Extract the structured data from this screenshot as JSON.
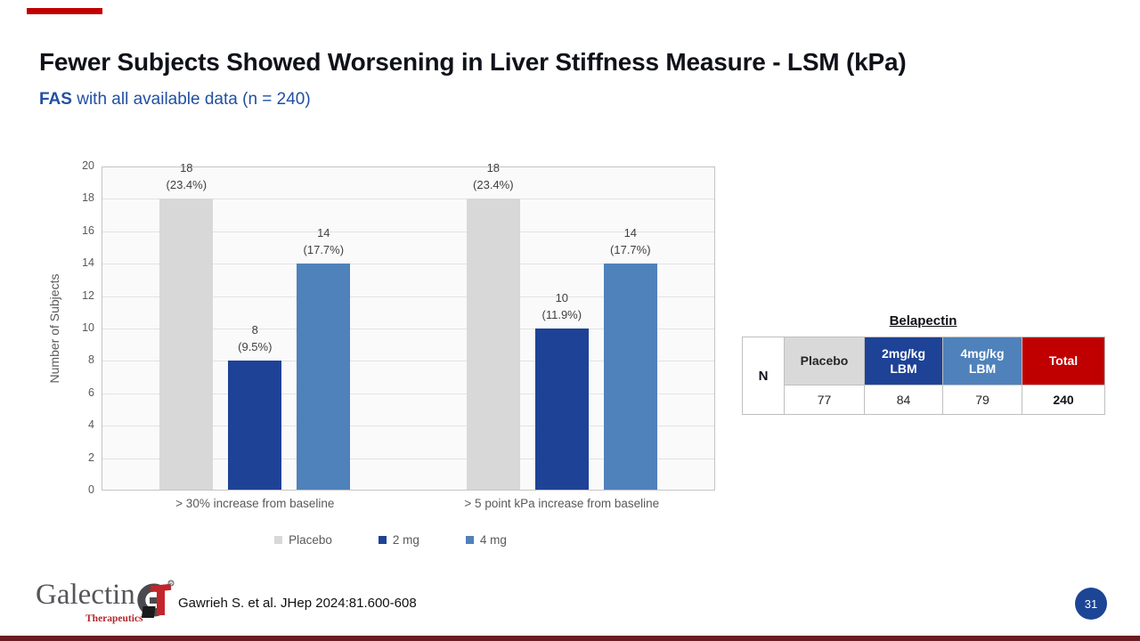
{
  "slide": {
    "title": "Fewer Subjects Showed Worsening in Liver Stiffness Measure - LSM (kPa)",
    "subtitle_bold": "FAS",
    "subtitle_rest": " with all available data (n = 240)",
    "accent_color": "#c00000",
    "bottom_strip_color": "#6d1b22"
  },
  "chart_data": {
    "type": "bar",
    "title": "",
    "xlabel": "",
    "ylabel": "Number of Subjects",
    "ylim": [
      0,
      20
    ],
    "ytick_step": 2,
    "grid": true,
    "legend_position": "bottom",
    "categories": [
      "> 30% increase from baseline",
      "> 5 point kPa increase from baseline"
    ],
    "series": [
      {
        "name": "Placebo",
        "color": "#d8d8d8",
        "values": [
          18,
          18
        ],
        "value_labels": [
          [
            "18",
            "(23.4%)"
          ],
          [
            "18",
            "(23.4%)"
          ]
        ]
      },
      {
        "name": "2 mg",
        "color": "#1e4296",
        "values": [
          8,
          10
        ],
        "value_labels": [
          [
            "8",
            "(9.5%)"
          ],
          [
            "10",
            "(11.9%)"
          ]
        ]
      },
      {
        "name": "4 mg",
        "color": "#4f81bb",
        "values": [
          14,
          14
        ],
        "value_labels": [
          [
            "14",
            "(17.7%)"
          ],
          [
            "14",
            "(17.7%)"
          ]
        ]
      }
    ]
  },
  "table": {
    "group_header": "Belapectin",
    "corner_label": "N",
    "columns": [
      {
        "label": "Placebo",
        "bg": "#d9d9d9",
        "fg": "#262626",
        "value": "77",
        "bold_value": false
      },
      {
        "label": "2mg/kg LBM",
        "bg": "#1e4296",
        "fg": "#ffffff",
        "value": "84",
        "bold_value": false
      },
      {
        "label": "4mg/kg LBM",
        "bg": "#4f81bb",
        "fg": "#ffffff",
        "value": "79",
        "bold_value": false
      },
      {
        "label": "Total",
        "bg": "#c00000",
        "fg": "#ffffff",
        "value": "240",
        "bold_value": true
      }
    ]
  },
  "footer": {
    "logo_primary": "Galectin",
    "logo_secondary": "Therapeutics",
    "citation": "Gawrieh S. et al. JHep 2024:81.600-608",
    "page_number": "31"
  }
}
